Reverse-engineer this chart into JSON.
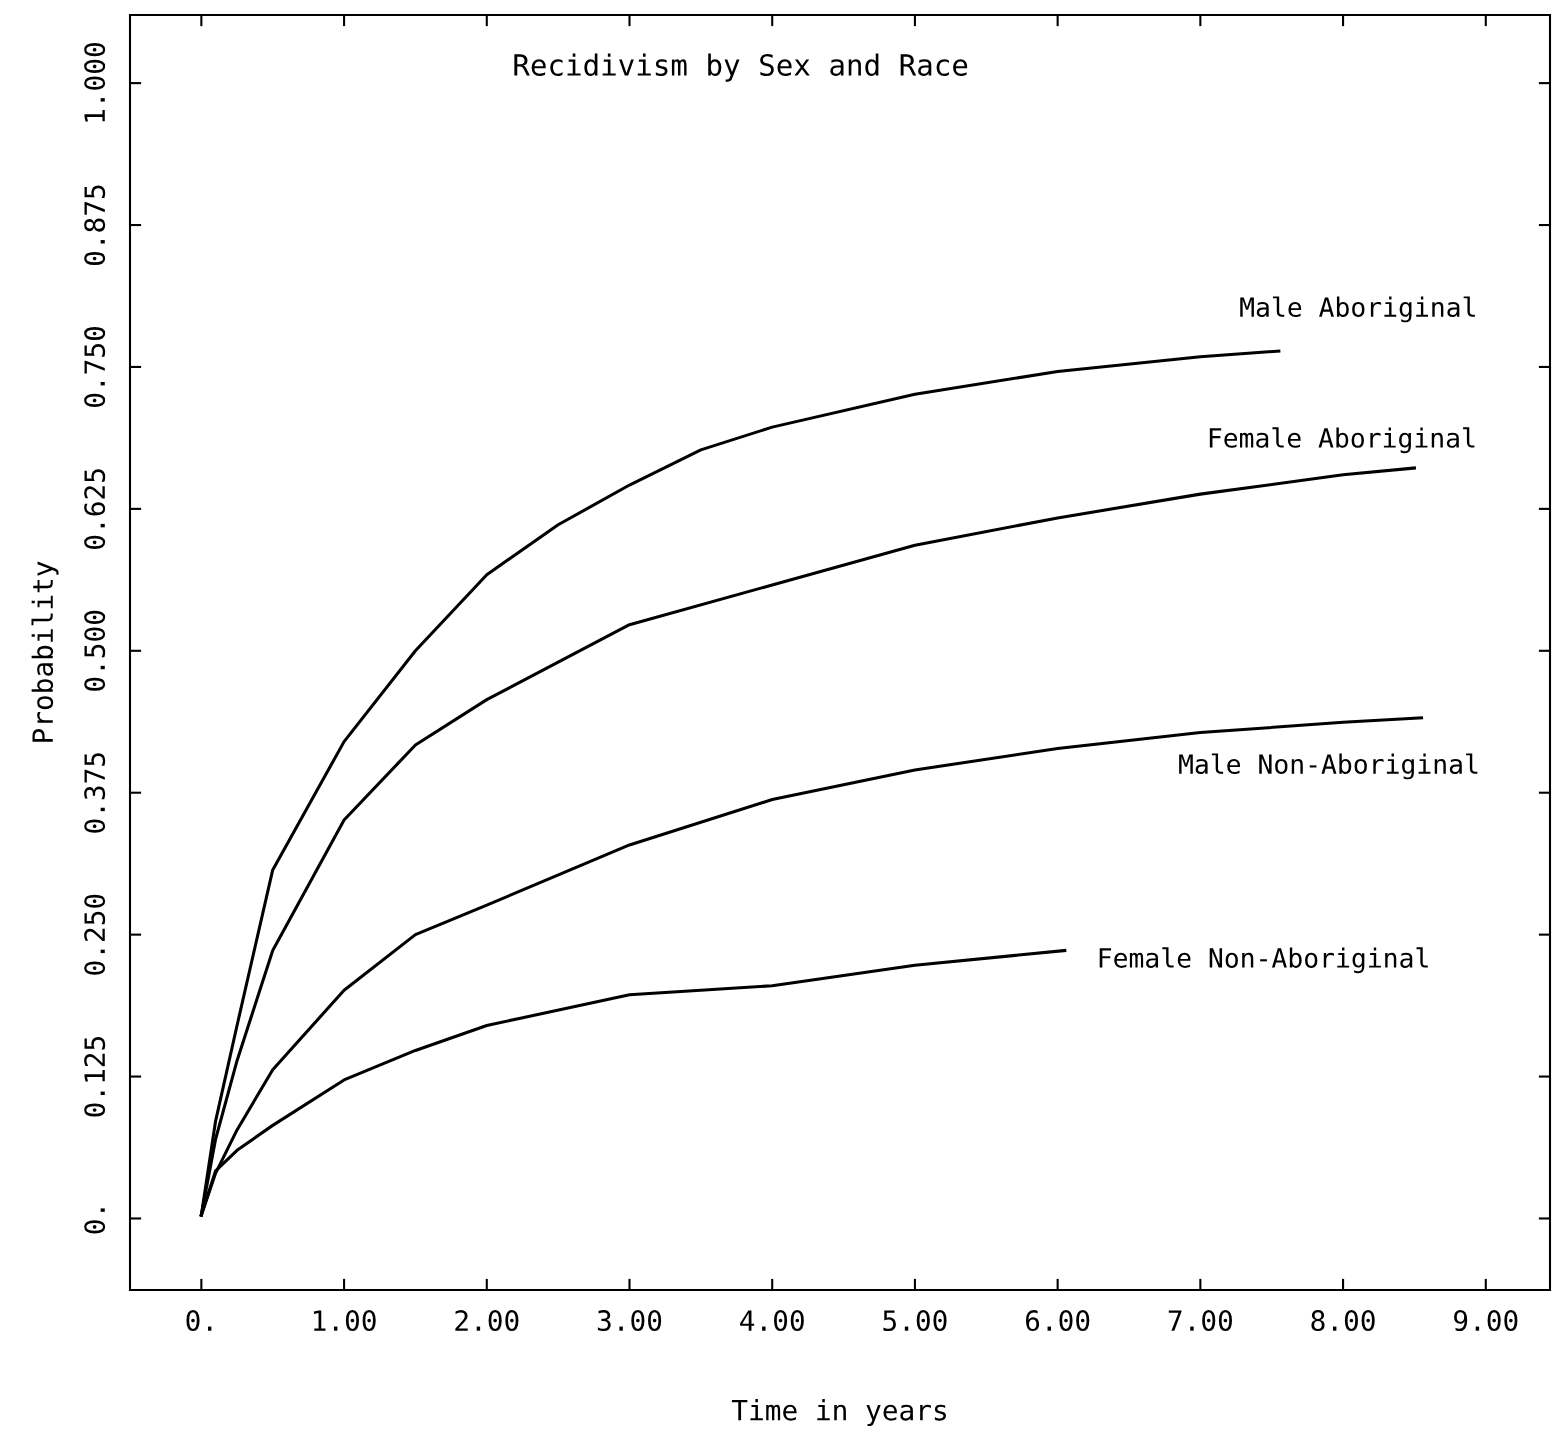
{
  "chart_data": {
    "type": "line",
    "title": "Recidivism by Sex and Race",
    "xlabel": "Time in years",
    "ylabel": "Probability",
    "xlim": [
      -0.5,
      9.45
    ],
    "ylim": [
      -0.063,
      1.06
    ],
    "xticks": [
      {
        "value": 0,
        "label": "0."
      },
      {
        "value": 1,
        "label": "1.00"
      },
      {
        "value": 2,
        "label": "2.00"
      },
      {
        "value": 3,
        "label": "3.00"
      },
      {
        "value": 4,
        "label": "4.00"
      },
      {
        "value": 5,
        "label": "5.00"
      },
      {
        "value": 6,
        "label": "6.00"
      },
      {
        "value": 7,
        "label": "7.00"
      },
      {
        "value": 8,
        "label": "8.00"
      },
      {
        "value": 9,
        "label": "9.00"
      }
    ],
    "yticks": [
      {
        "value": 0,
        "label": "0."
      },
      0.125,
      {
        "value": 0.25,
        "label": "0.250"
      },
      0.375,
      {
        "value": 0.5,
        "label": "0.500"
      },
      0.625,
      {
        "value": 0.75,
        "label": "0.750"
      },
      0.875,
      {
        "value": 1,
        "label": "1.000"
      }
    ],
    "grid": false,
    "legend": false,
    "marker": "none",
    "line_style": "solid",
    "series": [
      {
        "name": "Male Aboriginal",
        "color": "#000000",
        "x": [
          0,
          0.1,
          0.25,
          0.5,
          1,
          1.5,
          2,
          2.5,
          3,
          3.5,
          4,
          5,
          6,
          7,
          7.55
        ],
        "values": [
          0.003,
          0.086,
          0.17,
          0.307,
          0.42,
          0.5,
          0.567,
          0.611,
          0.646,
          0.677,
          0.697,
          0.726,
          0.746,
          0.759,
          0.764
        ]
      },
      {
        "name": "Female Aboriginal",
        "color": "#000000",
        "x": [
          0,
          0.1,
          0.25,
          0.5,
          1,
          1.5,
          2,
          3,
          4,
          5,
          6,
          7,
          8,
          8.5
        ],
        "values": [
          0.003,
          0.07,
          0.139,
          0.236,
          0.351,
          0.417,
          0.457,
          0.523,
          0.558,
          0.593,
          0.617,
          0.638,
          0.655,
          0.661
        ]
      },
      {
        "name": "Male Non-Aboriginal",
        "color": "#000000",
        "x": [
          0,
          0.1,
          0.25,
          0.5,
          1,
          1.5,
          2,
          3,
          4,
          5,
          6,
          7,
          8,
          8.55
        ],
        "values": [
          0.003,
          0.04,
          0.078,
          0.131,
          0.201,
          0.25,
          0.276,
          0.329,
          0.369,
          0.395,
          0.414,
          0.428,
          0.437,
          0.441
        ]
      },
      {
        "name": "Female Non-Aboriginal",
        "color": "#000000",
        "x": [
          0,
          0.1,
          0.25,
          0.5,
          1,
          1.5,
          2,
          3,
          4,
          5,
          6.05
        ],
        "values": [
          0.003,
          0.042,
          0.06,
          0.082,
          0.122,
          0.148,
          0.17,
          0.197,
          0.205,
          0.223,
          0.236
        ]
      }
    ]
  }
}
